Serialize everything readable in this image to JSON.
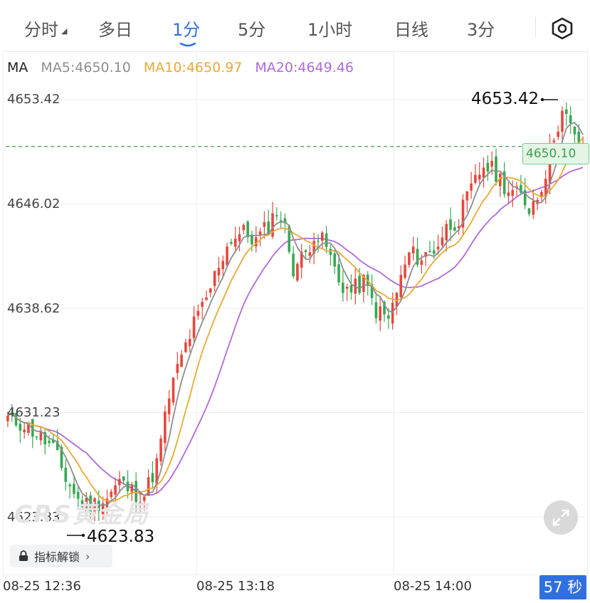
{
  "tabs": [
    {
      "label": "分时",
      "active": false,
      "has_dropdown": true
    },
    {
      "label": "多日",
      "active": false
    },
    {
      "label": "1分",
      "active": true
    },
    {
      "label": "5分",
      "active": false
    },
    {
      "label": "1小时",
      "active": false
    },
    {
      "label": "日线",
      "active": false
    },
    {
      "label": "3分",
      "active": false
    }
  ],
  "settings_icon": "hexagon-settings-icon",
  "ma_legend": {
    "label": "MA",
    "ma5": "MA5:4650.10",
    "ma10": "MA10:4650.97",
    "ma20": "MA20:4649.46"
  },
  "colors": {
    "up": "#e5483d",
    "down": "#36a852",
    "ma5": "#8e8e8e",
    "ma10": "#eba834",
    "ma20": "#b06ad8",
    "accent": "#2f6fe0",
    "grid": "#eeeeee"
  },
  "y_axis_labels": [
    "4653.42",
    "4646.02",
    "4638.62",
    "4631.23",
    "4623.83"
  ],
  "max_marker": "4653.42",
  "min_marker": "4623.83",
  "last_price_tag": "4650.10",
  "x_axis_labels": [
    "08-25 12:36",
    "08-25 13:18",
    "08-25 14:00"
  ],
  "countdown": "57 秒",
  "unlock_button": "指标解锁",
  "watermark": "CRS黄金局",
  "chart_data": {
    "type": "candlestick",
    "ylim": [
      4623.83,
      4653.42
    ],
    "y_ticks": [
      4653.42,
      4646.02,
      4638.62,
      4631.23,
      4623.83
    ],
    "x_ticks": [
      "08-25 12:36",
      "08-25 13:18",
      "08-25 14:00"
    ],
    "last_price": 4650.1,
    "grid": true,
    "keypoints": [
      {
        "t": 0,
        "p": 4630.8
      },
      {
        "t": 4,
        "p": 4630.4
      },
      {
        "t": 8,
        "p": 4629.5
      },
      {
        "t": 11,
        "p": 4628.6
      },
      {
        "t": 14,
        "p": 4626.6
      },
      {
        "t": 17,
        "p": 4625.0
      },
      {
        "t": 20,
        "p": 4624.6
      },
      {
        "t": 24,
        "p": 4625.2
      },
      {
        "t": 27,
        "p": 4626.3
      },
      {
        "t": 30,
        "p": 4625.6
      },
      {
        "t": 33,
        "p": 4625.4
      },
      {
        "t": 36,
        "p": 4627.6
      },
      {
        "t": 39,
        "p": 4632.4
      },
      {
        "t": 42,
        "p": 4635.2
      },
      {
        "t": 45,
        "p": 4637.5
      },
      {
        "t": 48,
        "p": 4639.2
      },
      {
        "t": 51,
        "p": 4641.8
      },
      {
        "t": 54,
        "p": 4643.6
      },
      {
        "t": 57,
        "p": 4644.0
      },
      {
        "t": 60,
        "p": 4643.4
      },
      {
        "t": 63,
        "p": 4644.5
      },
      {
        "t": 65,
        "p": 4645.6
      },
      {
        "t": 67,
        "p": 4644.2
      },
      {
        "t": 69,
        "p": 4641.5
      },
      {
        "t": 72,
        "p": 4642.5
      },
      {
        "t": 74,
        "p": 4644.0
      },
      {
        "t": 77,
        "p": 4643.0
      },
      {
        "t": 80,
        "p": 4640.5
      },
      {
        "t": 83,
        "p": 4639.8
      },
      {
        "t": 86,
        "p": 4640.5
      },
      {
        "t": 89,
        "p": 4638.5
      },
      {
        "t": 92,
        "p": 4637.8
      },
      {
        "t": 94,
        "p": 4639.8
      },
      {
        "t": 97,
        "p": 4642.5
      },
      {
        "t": 100,
        "p": 4642.2
      },
      {
        "t": 103,
        "p": 4642.8
      },
      {
        "t": 106,
        "p": 4644.3
      },
      {
        "t": 109,
        "p": 4645.0
      },
      {
        "t": 112,
        "p": 4647.0
      },
      {
        "t": 115,
        "p": 4648.8
      },
      {
        "t": 118,
        "p": 4648.2
      },
      {
        "t": 121,
        "p": 4647.0
      },
      {
        "t": 124,
        "p": 4646.5
      },
      {
        "t": 126,
        "p": 4645.8
      },
      {
        "t": 128,
        "p": 4646.6
      },
      {
        "t": 130,
        "p": 4648.3
      },
      {
        "t": 132,
        "p": 4651.0
      },
      {
        "t": 134,
        "p": 4652.5
      },
      {
        "t": 136,
        "p": 4651.5
      },
      {
        "t": 138,
        "p": 4649.6
      },
      {
        "t": 139,
        "p": 4650.1
      }
    ],
    "candle_count": 140,
    "ma_periods": [
      5,
      10,
      20
    ]
  }
}
